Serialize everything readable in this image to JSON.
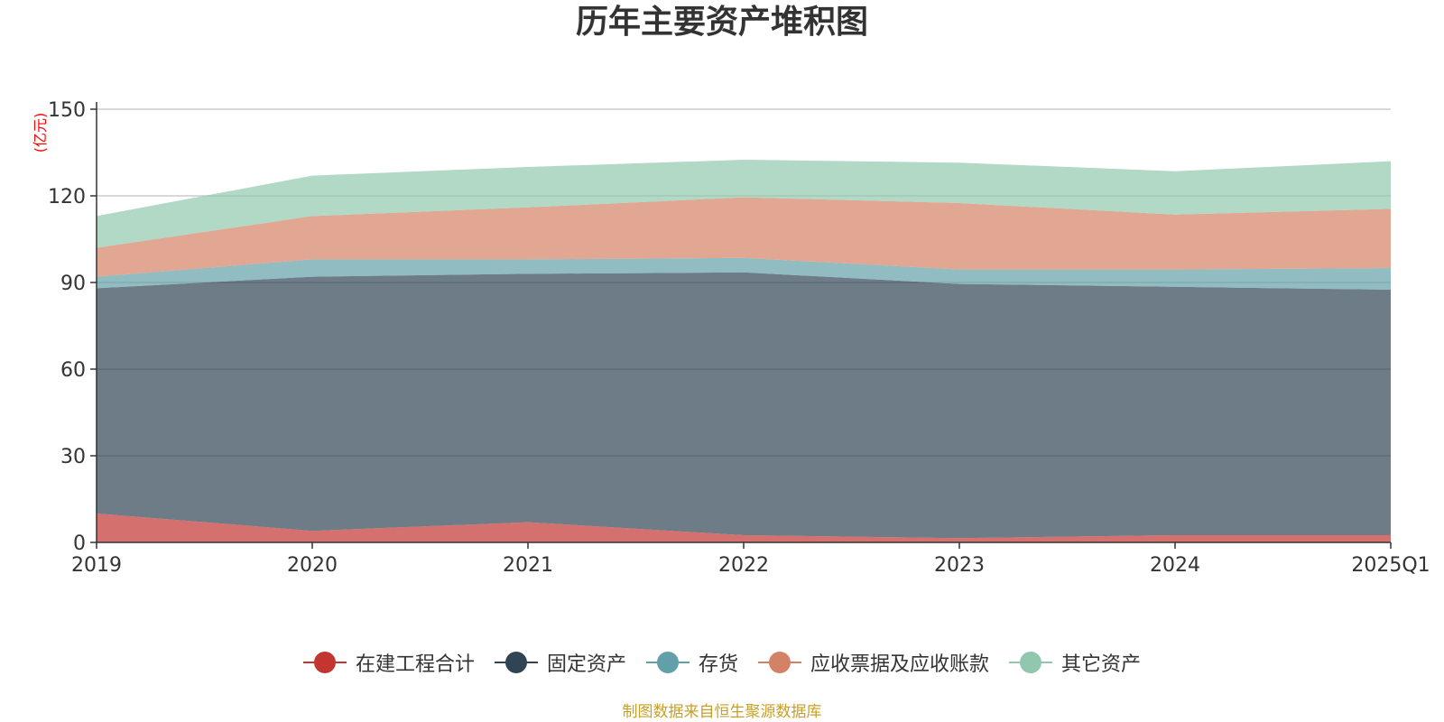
{
  "title": "历年主要资产堆积图",
  "source": "制图数据来自恒生聚源数据库",
  "chart_data": {
    "type": "area",
    "stacked": true,
    "title": "历年主要资产堆积图",
    "y_unit": "(亿元)",
    "ylim": [
      0,
      150
    ],
    "y_ticks": [
      0,
      30,
      60,
      90,
      120,
      150
    ],
    "grid": true,
    "legend_position": "bottom",
    "categories": [
      "2019",
      "2020",
      "2021",
      "2022",
      "2023",
      "2024",
      "2025Q1"
    ],
    "series": [
      {
        "name": "在建工程合计",
        "color": "#c23531",
        "values": [
          10,
          4,
          7,
          2.5,
          1.5,
          2.5,
          2.5
        ]
      },
      {
        "name": "固定资产",
        "color": "#2f4554",
        "values": [
          78,
          88,
          86,
          91,
          88,
          86,
          85
        ]
      },
      {
        "name": "存货",
        "color": "#61a0a8",
        "values": [
          4,
          6,
          5,
          5,
          5,
          6,
          7.5
        ]
      },
      {
        "name": "应收票据及应收账款",
        "color": "#d48265",
        "values": [
          10,
          15,
          18,
          21,
          23,
          19,
          20.5
        ]
      },
      {
        "name": "其它资产",
        "color": "#91c7ae",
        "values": [
          11,
          14,
          14,
          13,
          14,
          15,
          16.5
        ]
      }
    ]
  }
}
